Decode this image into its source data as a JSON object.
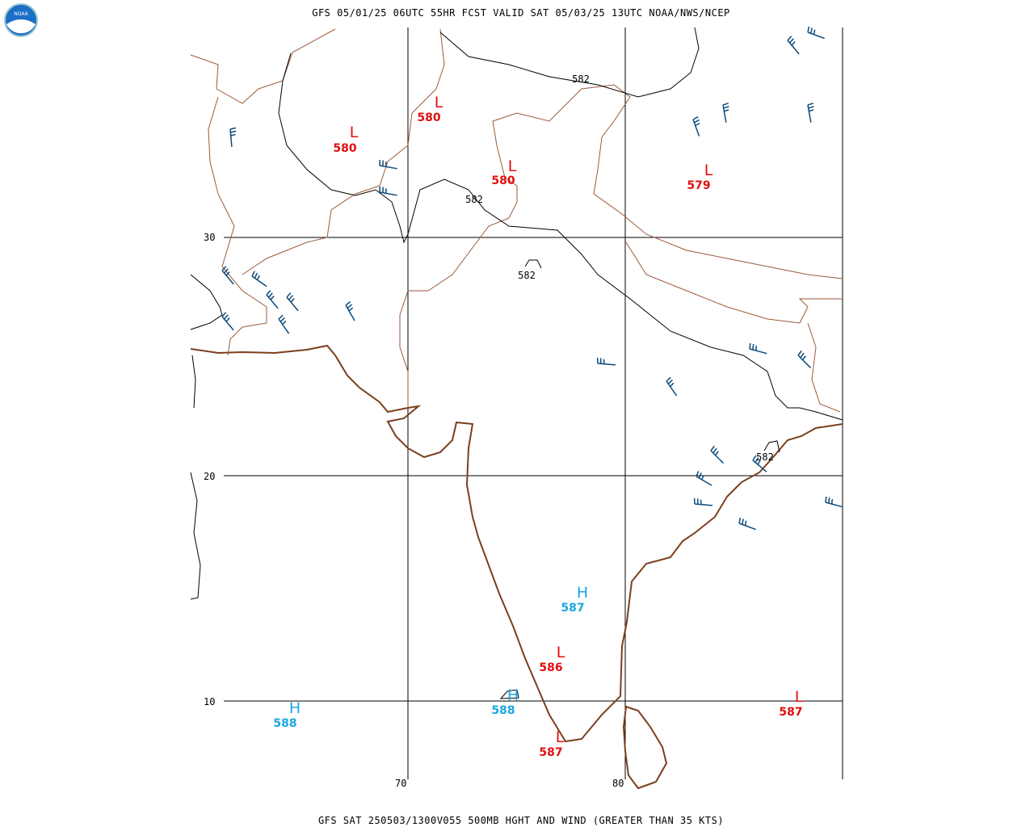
{
  "header": "GFS 05/01/25 06UTC 55HR FCST VALID SAT 05/03/25 13UTC NOAA/NWS/NCEP",
  "footer": "GFS SAT 250503/1300V055 500MB HGHT AND WIND (GREATER THAN 35 KTS)",
  "logo": "NOAA",
  "grid_labels": {
    "lat": [
      30,
      20,
      10
    ],
    "lon": [
      70,
      80
    ]
  },
  "centers": [
    {
      "symbol": "L",
      "value": 580
    },
    {
      "symbol": "L",
      "value": 580
    },
    {
      "symbol": "L",
      "value": 580
    },
    {
      "symbol": "L",
      "value": 579
    },
    {
      "symbol": "H",
      "value": 587
    },
    {
      "symbol": "L",
      "value": 586
    },
    {
      "symbol": "H",
      "value": 588
    },
    {
      "symbol": "H",
      "value": 588
    },
    {
      "symbol": "L",
      "value": 587
    },
    {
      "symbol": "L",
      "value": 587
    }
  ],
  "contour_labels": [
    582,
    582,
    582,
    582
  ]
}
